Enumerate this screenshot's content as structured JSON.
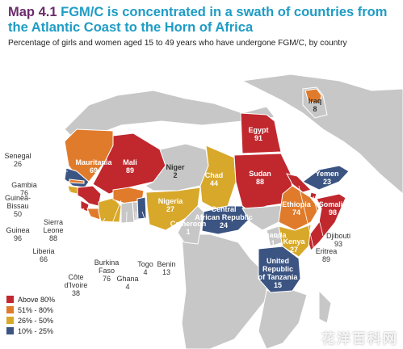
{
  "title": {
    "prefix": "Map 4.1",
    "text": "FGM/C is concentrated in a swath of countries from the Atlantic Coast to the Horn of Africa"
  },
  "subtitle": "Percentage of girls and women aged 15 to 49 years who have undergone FGM/C, by country",
  "colors": {
    "above80": "#c0282e",
    "51to80": "#e07b2c",
    "26to50": "#d8a82a",
    "10to25": "#3b5482",
    "nodata": "#c7c7c7",
    "sea": "#ffffff",
    "outline": "#ffffff"
  },
  "countries": [
    {
      "id": "senegal",
      "name": "Senegal",
      "value": "26"
    },
    {
      "id": "gambia",
      "name": "Gambia",
      "value": "76"
    },
    {
      "id": "guinea-bissau",
      "name": "Guinea-\nBissau",
      "value": "50"
    },
    {
      "id": "guinea",
      "name": "Guinea",
      "value": "96"
    },
    {
      "id": "sierra-leone",
      "name": "Sierra\nLeone",
      "value": "88"
    },
    {
      "id": "liberia",
      "name": "Liberia",
      "value": "66"
    },
    {
      "id": "cote-divoire",
      "name": "Côte\nd'Ivoire",
      "value": "38"
    },
    {
      "id": "burkina-faso",
      "name": "Burkina\nFaso",
      "value": "76"
    },
    {
      "id": "ghana",
      "name": "Ghana",
      "value": "4"
    },
    {
      "id": "togo",
      "name": "Togo",
      "value": "4"
    },
    {
      "id": "benin",
      "name": "Benin",
      "value": "13"
    },
    {
      "id": "mauritania",
      "name": "Mauritania",
      "value": "69"
    },
    {
      "id": "mali",
      "name": "Mali",
      "value": "89"
    },
    {
      "id": "niger",
      "name": "Niger",
      "value": "2"
    },
    {
      "id": "nigeria",
      "name": "Nigeria",
      "value": "27"
    },
    {
      "id": "chad",
      "name": "Chad",
      "value": "44"
    },
    {
      "id": "cameroon",
      "name": "Cameroon",
      "value": "1"
    },
    {
      "id": "car",
      "name": "Central\nAfrican Republic",
      "value": "24"
    },
    {
      "id": "egypt",
      "name": "Egypt",
      "value": "91"
    },
    {
      "id": "sudan",
      "name": "Sudan",
      "value": "88"
    },
    {
      "id": "iraq",
      "name": "Iraq",
      "value": "8"
    },
    {
      "id": "yemen",
      "name": "Yemen",
      "value": "23"
    },
    {
      "id": "ethiopia",
      "name": "Ethiopia",
      "value": "74"
    },
    {
      "id": "somalia",
      "name": "Somalia",
      "value": "98"
    },
    {
      "id": "djibouti",
      "name": "Djibouti",
      "value": "93"
    },
    {
      "id": "eritrea",
      "name": "Eritrea",
      "value": "89"
    },
    {
      "id": "uganda",
      "name": "Uganda",
      "value": "1"
    },
    {
      "id": "kenya",
      "name": "Kenya",
      "value": "27"
    },
    {
      "id": "tanzania",
      "name": "United\nRepublic\nof Tanzania",
      "value": "15"
    }
  ],
  "legend": [
    {
      "label": "Above 80%",
      "color_key": "above80"
    },
    {
      "label": "51% - 80%",
      "color_key": "51to80"
    },
    {
      "label": "26% - 50%",
      "color_key": "26to50"
    },
    {
      "label": "10% - 25%",
      "color_key": "10to25"
    }
  ],
  "watermark": "花洋百科网"
}
